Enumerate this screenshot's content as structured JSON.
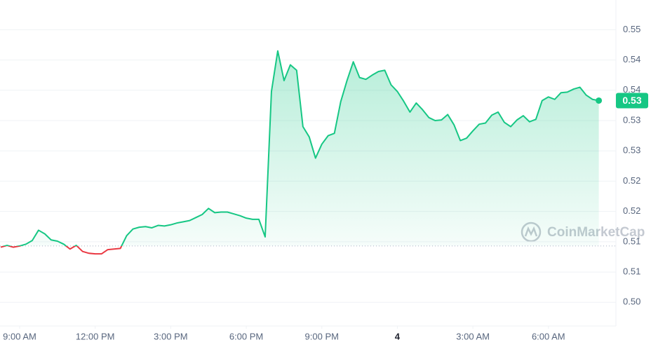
{
  "chart_data": {
    "type": "line",
    "x": [
      8.25,
      8.5,
      8.75,
      9,
      9.25,
      9.5,
      9.75,
      10,
      10.25,
      10.5,
      10.75,
      11,
      11.25,
      11.5,
      11.75,
      12,
      12.25,
      12.5,
      12.75,
      13,
      13.25,
      13.5,
      13.75,
      14,
      14.25,
      14.5,
      14.75,
      15,
      15.25,
      15.5,
      15.75,
      16,
      16.25,
      16.5,
      16.75,
      17,
      17.25,
      17.5,
      17.75,
      18,
      18.25,
      18.5,
      18.75,
      19,
      19.25,
      19.5,
      19.75,
      20,
      20.25,
      20.5,
      20.75,
      21,
      21.25,
      21.5,
      21.75,
      22,
      22.25,
      22.5,
      22.75,
      23,
      23.25,
      23.5,
      23.75,
      24,
      24.25,
      24.5,
      24.75,
      25,
      25.25,
      25.5,
      25.75,
      26,
      26.25,
      26.5,
      26.75,
      27,
      27.25,
      27.5,
      27.75,
      28,
      28.25,
      28.5,
      28.75,
      29,
      29.25,
      29.5,
      29.75,
      30,
      30.25,
      30.5,
      30.75,
      31,
      31.25,
      31.5,
      31.75,
      32
    ],
    "series": [
      {
        "values": [
          0.5091,
          0.5094,
          0.5091,
          0.5093,
          0.5096,
          0.5102,
          0.5119,
          0.5113,
          0.5103,
          0.5101,
          0.5096,
          0.5088,
          0.5094,
          0.5084,
          0.5081,
          0.508,
          0.508,
          0.5087,
          0.5088,
          0.5089,
          0.511,
          0.5121,
          0.5124,
          0.5125,
          0.5123,
          0.5127,
          0.5126,
          0.5128,
          0.5131,
          0.5133,
          0.5135,
          0.514,
          0.5145,
          0.5155,
          0.5148,
          0.5149,
          0.5149,
          0.5146,
          0.5143,
          0.5139,
          0.5137,
          0.5137,
          0.5108,
          0.5348,
          0.5415,
          0.5366,
          0.5392,
          0.5383,
          0.529,
          0.5273,
          0.5238,
          0.5261,
          0.5275,
          0.5279,
          0.5331,
          0.5366,
          0.5397,
          0.5371,
          0.5368,
          0.5375,
          0.5381,
          0.5383,
          0.5359,
          0.5348,
          0.5332,
          0.5314,
          0.5329,
          0.5318,
          0.5305,
          0.53,
          0.5301,
          0.531,
          0.5293,
          0.5267,
          0.5271,
          0.5283,
          0.5294,
          0.5296,
          0.5309,
          0.5314,
          0.5297,
          0.529,
          0.5301,
          0.5308,
          0.5298,
          0.5302,
          0.5333,
          0.5339,
          0.5335,
          0.5346,
          0.5347,
          0.5352,
          0.5355,
          0.5342,
          0.5335,
          0.5333
        ]
      }
    ],
    "baseline": 0.5093,
    "up_color": "#16c784",
    "down_color": "#ea3943",
    "current_price_label": "0.53",
    "watermark": "CoinMarketCap",
    "xlim": [
      8.22,
      32.68
    ],
    "xticks": [
      {
        "value": 9,
        "label": "9:00 AM"
      },
      {
        "value": 12,
        "label": "12:00 PM"
      },
      {
        "value": 15,
        "label": "3:00 PM"
      },
      {
        "value": 18,
        "label": "6:00 PM"
      },
      {
        "value": 21,
        "label": "9:00 PM"
      },
      {
        "value": 24,
        "label": "4"
      },
      {
        "value": 27,
        "label": "3:00 AM"
      },
      {
        "value": 30,
        "label": "6:00 AM"
      }
    ],
    "ylim": [
      0.4961,
      0.5499
    ],
    "yticks": [
      {
        "value": 0.5,
        "label": "0.50"
      },
      {
        "value": 0.505,
        "label": "0.51"
      },
      0.51,
      {
        "value": 0.515,
        "label": "0.52"
      },
      0.52,
      {
        "value": 0.525,
        "label": "0.53"
      },
      0.53,
      {
        "value": 0.535,
        "label": "0.54"
      },
      0.54,
      {
        "value": 0.545,
        "label": "0.55"
      }
    ],
    "grid": true
  }
}
